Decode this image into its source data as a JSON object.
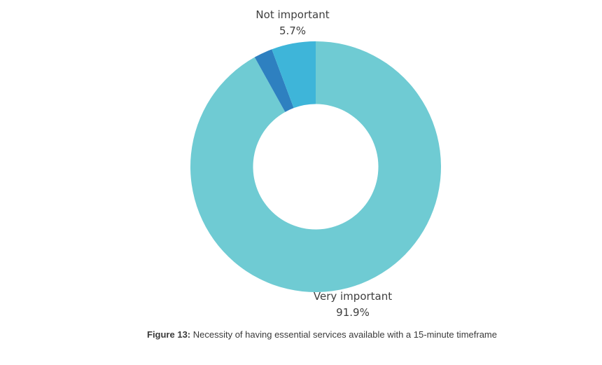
{
  "page": {
    "background": "#ffffff"
  },
  "chart_data": {
    "type": "pie",
    "subtype": "donut",
    "title": "",
    "legend": "none",
    "inner_radius_ratio": 0.5,
    "start_angle_deg": 0,
    "direction": "clockwise",
    "slices": [
      {
        "label": "Very important",
        "value": 91.9,
        "display": "91.9%",
        "color": "#6fcbd3",
        "labeled_on_chart": true
      },
      {
        "label": "",
        "value": 2.4,
        "display": "",
        "color": "#2e80c0",
        "labeled_on_chart": false
      },
      {
        "label": "Not important",
        "value": 5.7,
        "display": "5.7%",
        "color": "#3eb5d9",
        "labeled_on_chart": true
      }
    ]
  },
  "labels": {
    "top": {
      "name": "Not important",
      "value": "5.7%"
    },
    "bottom": {
      "name": "Very important",
      "value": "91.9%"
    }
  },
  "caption": {
    "prefix": "Figure 13:",
    "text": " Necessity of having essential services available with a 15-minute timeframe"
  }
}
